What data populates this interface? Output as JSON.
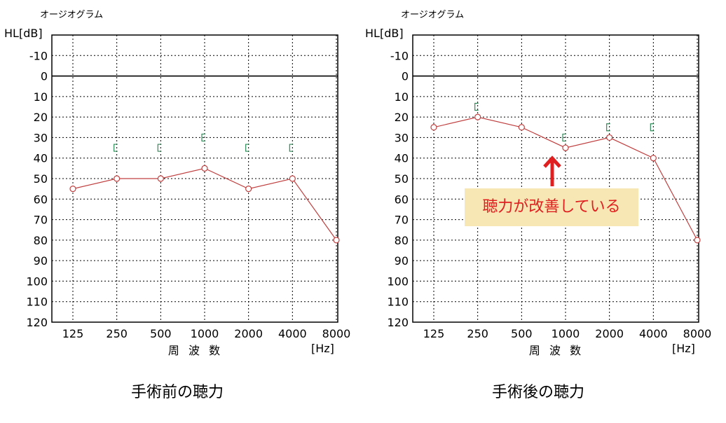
{
  "chart_data": [
    {
      "type": "line",
      "title": "オージオグラム",
      "ylabel": "HL[dB]",
      "xlabel": "周 波 数",
      "xunit": "[Hz]",
      "categories": [
        "125",
        "250",
        "500",
        "1000",
        "2000",
        "4000",
        "8000"
      ],
      "yticks": [
        "-10",
        "0",
        "10",
        "20",
        "30",
        "40",
        "50",
        "60",
        "70",
        "80",
        "90",
        "100",
        "110",
        "120"
      ],
      "ylim": [
        -20,
        120
      ],
      "y_inverted": true,
      "grid": true,
      "series": [
        {
          "values": [
            55,
            50,
            50,
            45,
            55,
            50,
            80
          ],
          "color": "#c04040"
        }
      ],
      "bone_marks": [
        {
          "x": "250",
          "y": 35
        },
        {
          "x": "500",
          "y": 35
        },
        {
          "x": "1000",
          "y": 30
        },
        {
          "x": "2000",
          "y": 35
        },
        {
          "x": "4000",
          "y": 35
        }
      ],
      "caption": "手術前の聴力"
    },
    {
      "type": "line",
      "title": "オージオグラム",
      "ylabel": "HL[dB]",
      "xlabel": "周 波 数",
      "xunit": "[Hz]",
      "categories": [
        "125",
        "250",
        "500",
        "1000",
        "2000",
        "4000",
        "8000"
      ],
      "yticks": [
        "-10",
        "0",
        "10",
        "20",
        "30",
        "40",
        "50",
        "60",
        "70",
        "80",
        "90",
        "100",
        "110",
        "120"
      ],
      "ylim": [
        -20,
        120
      ],
      "y_inverted": true,
      "grid": true,
      "series": [
        {
          "values": [
            25,
            20,
            25,
            35,
            30,
            40,
            80
          ],
          "color": "#c04040"
        }
      ],
      "bone_marks": [
        {
          "x": "250",
          "y": 15
        },
        {
          "x": "1000",
          "y": 30
        },
        {
          "x": "2000",
          "y": 25
        },
        {
          "x": "4000",
          "y": 25
        }
      ],
      "caption": "手術後の聴力",
      "annotation": "聴力が改善している"
    }
  ],
  "colors": {
    "line": "#c04040",
    "bone_mark": "#2e8b57",
    "callout_bg": "#f7e7b4",
    "callout_text": "#e02020"
  }
}
